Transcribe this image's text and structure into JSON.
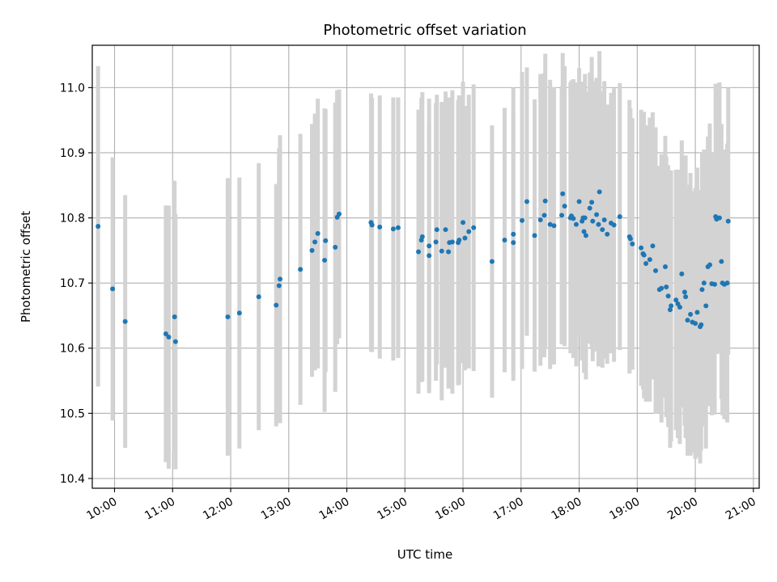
{
  "chart_data": {
    "type": "scatter",
    "title": "Photometric offset variation",
    "xlabel": "UTC time",
    "ylabel": "Photometric offset",
    "grid": true,
    "xlim": [
      "09:37",
      "21:06"
    ],
    "ylim": [
      10.385,
      11.065
    ],
    "x_ticks": [
      "10:00",
      "11:00",
      "12:00",
      "13:00",
      "14:00",
      "15:00",
      "16:00",
      "17:00",
      "18:00",
      "19:00",
      "20:00",
      "21:00"
    ],
    "y_ticks": [
      "10.4",
      "10.5",
      "10.6",
      "10.7",
      "10.8",
      "10.9",
      "11.0"
    ],
    "colors": {
      "point": "#1f77b4",
      "errorbar": "#d3d3d3",
      "grid": "#b0b0b0"
    },
    "series": [
      {
        "x": [
          "09:43",
          "09:58",
          "10:11",
          "10:53",
          "10:56",
          "11:02",
          "11:03",
          "11:57",
          "12:09",
          "12:29",
          "12:47",
          "12:50",
          "12:51",
          "13:12",
          "13:24",
          "13:27",
          "13:30",
          "13:37",
          "13:38",
          "13:48",
          "13:50",
          "13:52",
          "14:25",
          "14:26",
          "14:34",
          "14:48",
          "14:53",
          "15:14",
          "15:17",
          "15:18",
          "15:25",
          "15:25",
          "15:32",
          "15:33",
          "15:38",
          "15:42",
          "15:45",
          "15:46",
          "15:49",
          "15:55",
          "15:56",
          "16:00",
          "16:02",
          "16:06",
          "16:11",
          "16:30",
          "16:43",
          "16:52",
          "16:52",
          "17:01",
          "17:06",
          "17:14",
          "17:20",
          "17:24",
          "17:25",
          "17:30",
          "17:34",
          "17:42",
          "17:43",
          "17:45",
          "17:51",
          "17:52",
          "17:54",
          "17:57",
          "18:00",
          "18:03",
          "18:04",
          "18:05",
          "18:06",
          "18:07",
          "18:11",
          "18:13",
          "18:14",
          "18:18",
          "18:20",
          "18:21",
          "18:24",
          "18:26",
          "18:29",
          "18:33",
          "18:36",
          "18:42",
          "18:52",
          "18:53",
          "18:55",
          "19:04",
          "19:06",
          "19:07",
          "19:09",
          "19:13",
          "19:16",
          "19:19",
          "19:23",
          "19:25",
          "19:29",
          "19:30",
          "19:32",
          "19:34",
          "19:35",
          "19:40",
          "19:42",
          "19:44",
          "19:46",
          "19:49",
          "19:50",
          "19:52",
          "19:55",
          "19:57",
          "20:00",
          "20:02",
          "20:05",
          "20:06",
          "20:07",
          "20:09",
          "20:11",
          "20:13",
          "20:15",
          "20:17",
          "20:20",
          "20:21",
          "20:22",
          "20:25",
          "20:27",
          "20:28",
          "20:30",
          "20:33",
          "20:34"
        ],
        "y": [
          10.787,
          10.691,
          10.641,
          10.622,
          10.617,
          10.648,
          10.61,
          10.648,
          10.654,
          10.679,
          10.666,
          10.696,
          10.706,
          10.721,
          10.75,
          10.763,
          10.776,
          10.735,
          10.765,
          10.755,
          10.801,
          10.806,
          10.793,
          10.789,
          10.786,
          10.783,
          10.785,
          10.748,
          10.766,
          10.771,
          10.742,
          10.757,
          10.763,
          10.782,
          10.749,
          10.782,
          10.748,
          10.762,
          10.763,
          10.762,
          10.766,
          10.793,
          10.769,
          10.779,
          10.785,
          10.733,
          10.766,
          10.775,
          10.762,
          10.796,
          10.825,
          10.773,
          10.797,
          10.804,
          10.826,
          10.79,
          10.788,
          10.804,
          10.837,
          10.818,
          10.8,
          10.803,
          10.799,
          10.79,
          10.825,
          10.795,
          10.8,
          10.779,
          10.8,
          10.773,
          10.815,
          10.824,
          10.795,
          10.805,
          10.79,
          10.84,
          10.782,
          10.797,
          10.775,
          10.792,
          10.789,
          10.802,
          10.771,
          10.768,
          10.76,
          10.754,
          10.745,
          10.743,
          10.73,
          10.736,
          10.757,
          10.719,
          10.69,
          10.692,
          10.725,
          10.694,
          10.68,
          10.659,
          10.665,
          10.674,
          10.668,
          10.663,
          10.714,
          10.686,
          10.679,
          10.643,
          10.652,
          10.64,
          10.638,
          10.655,
          10.633,
          10.636,
          10.69,
          10.7,
          10.665,
          10.725,
          10.728,
          10.699,
          10.698,
          10.802,
          10.798,
          10.8,
          10.733,
          10.7,
          10.698,
          10.7,
          10.795
        ],
        "err": [
          0.246,
          0.202,
          0.194,
          0.197,
          0.202,
          0.209,
          0.196,
          0.213,
          0.208,
          0.205,
          0.186,
          0.211,
          0.221,
          0.208,
          0.194,
          0.197,
          0.207,
          0.233,
          0.202,
          0.222,
          0.195,
          0.191,
          0.198,
          0.195,
          0.202,
          0.202,
          0.2,
          0.218,
          0.218,
          0.222,
          0.2,
          0.226,
          0.213,
          0.207,
          0.229,
          0.212,
          0.21,
          0.223,
          0.233,
          0.219,
          0.222,
          0.216,
          0.203,
          0.21,
          0.22,
          0.209,
          0.203,
          0.225,
          0.199,
          0.228,
          0.206,
          0.209,
          0.224,
          0.218,
          0.226,
          0.222,
          0.213,
          0.198,
          0.216,
          0.215,
          0.208,
          0.208,
          0.214,
          0.218,
          0.205,
          0.214,
          0.209,
          0.217,
          0.221,
          0.221,
          0.208,
          0.223,
          0.215,
          0.21,
          0.218,
          0.216,
          0.212,
          0.213,
          0.199,
          0.2,
          0.21,
          0.205,
          0.21,
          0.2,
          0.193,
          0.212,
          0.208,
          0.22,
          0.212,
          0.218,
          0.205,
          0.22,
          0.19,
          0.206,
          0.201,
          0.2,
          0.201,
          0.212,
          0.208,
          0.2,
          0.206,
          0.21,
          0.205,
          0.205,
          0.217,
          0.208,
          0.217,
          0.201,
          0.208,
          0.222,
          0.21,
          0.193,
          0.21,
          0.205,
          0.219,
          0.2,
          0.217,
          0.202,
          0.2,
          0.204,
          0.207,
          0.208,
          0.211,
          0.203,
          0.207,
          0.214,
          0.205
        ]
      }
    ]
  }
}
